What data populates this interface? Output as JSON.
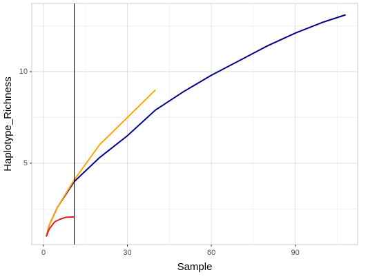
{
  "chart_data": {
    "type": "line",
    "x_label": "Sample",
    "y_label": "Haplotype_Richness",
    "xlim": [
      -4.2,
      112.3
    ],
    "ylim": [
      0.56,
      13.72
    ],
    "xticks": [
      0,
      30,
      60,
      90
    ],
    "yticks": [
      5,
      10
    ],
    "xminor_ticks": [
      15,
      45,
      75,
      105
    ],
    "yminor_ticks": [
      2.5,
      7.5,
      12.5
    ],
    "grid": true,
    "vline": 11,
    "vline_color": "#000000",
    "series": [
      {
        "color": "#00008b",
        "x": [
          1,
          2,
          5,
          11,
          20,
          30,
          40,
          50,
          60,
          70,
          80,
          90,
          100,
          108
        ],
        "values": [
          1,
          1.6,
          2.6,
          4.0,
          5.3,
          6.5,
          7.9,
          8.9,
          9.8,
          10.6,
          11.4,
          12.1,
          12.7,
          13.1
        ]
      },
      {
        "color": "#ffa500",
        "x": [
          1,
          2,
          5,
          11,
          20,
          30,
          40
        ],
        "values": [
          1,
          1.6,
          2.6,
          4.1,
          6.0,
          7.5,
          9.0
        ]
      },
      {
        "color": "#e31a1c",
        "x": [
          1,
          2,
          4,
          6,
          8,
          11
        ],
        "values": [
          1,
          1.4,
          1.8,
          1.95,
          2.05,
          2.07
        ]
      }
    ]
  }
}
